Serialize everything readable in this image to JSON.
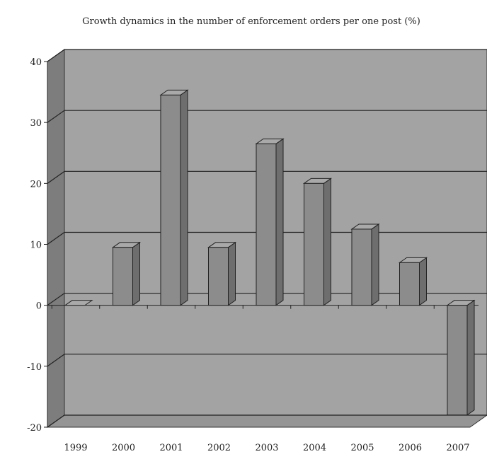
{
  "chart_data": {
    "type": "bar",
    "title": "Growth dynamics in the number of enforcement orders per one post (%)",
    "xlabel": "",
    "ylabel": "",
    "categories": [
      "1999",
      "2000",
      "2001",
      "2002",
      "2003",
      "2004",
      "2005",
      "2006",
      "2007"
    ],
    "values": [
      0,
      9.5,
      34.5,
      9.5,
      26.5,
      20,
      12.5,
      7,
      -18
    ],
    "ylim": [
      -20,
      40
    ],
    "yticks": [
      40,
      30,
      20,
      10,
      0,
      -10,
      -20
    ],
    "grid": true,
    "three_d": true,
    "colors": {
      "bar_front": "#8c8c8c",
      "bar_top": "#a9a9a9",
      "bar_side": "#6e6e6e",
      "wall": "#a3a3a3",
      "wall_side": "#7d7d7d",
      "floor": "#959595",
      "grid_line": "#222222"
    }
  }
}
